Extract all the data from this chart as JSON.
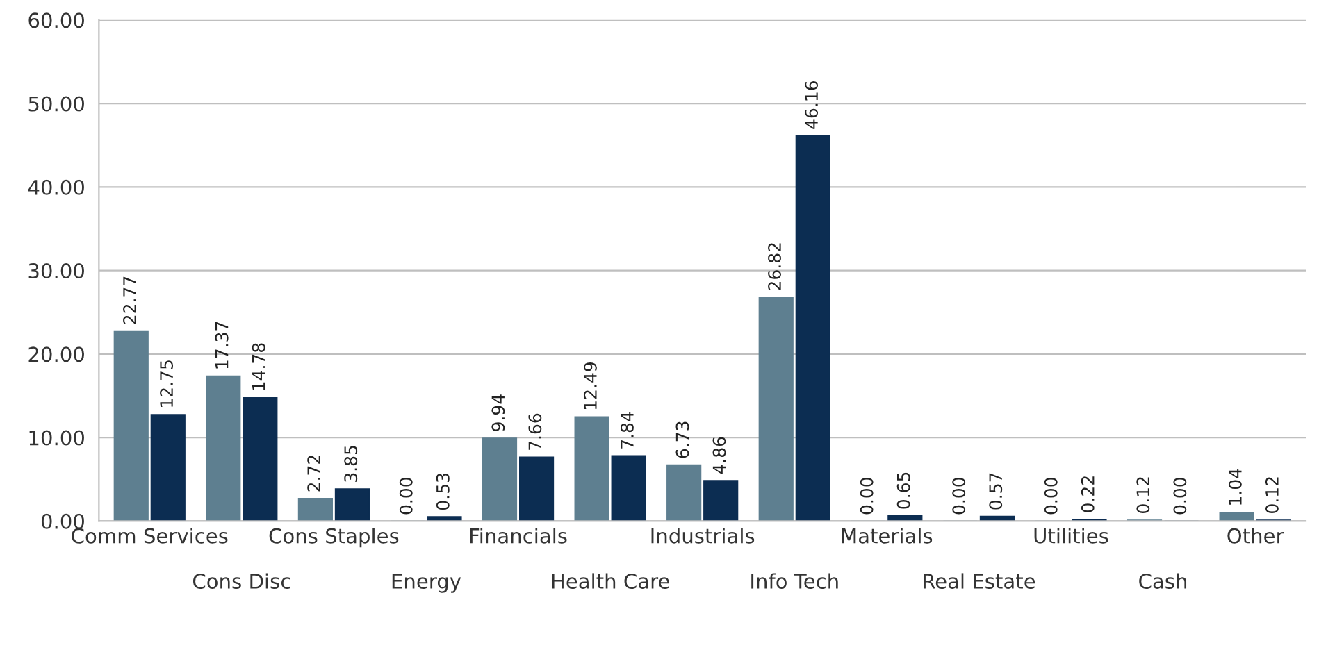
{
  "chart_data": {
    "type": "bar",
    "categories": [
      "Comm Services",
      "Cons Disc",
      "Cons Staples",
      "Energy",
      "Financials",
      "Health Care",
      "Industrials",
      "Info Tech",
      "Materials",
      "Real Estate",
      "Utilities",
      "Cash",
      "Other"
    ],
    "series": [
      {
        "color": "#5e7f90",
        "values": [
          22.77,
          17.37,
          2.72,
          0.0,
          9.94,
          12.49,
          6.73,
          26.82,
          0.0,
          0.0,
          0.0,
          0.12,
          1.04
        ],
        "value_labels": [
          "22.77",
          "17.37",
          "2.72",
          "0.00",
          "9.94",
          "12.49",
          "6.73",
          "26.82",
          "0.00",
          "0.00",
          "0.00",
          "0.12",
          "1.04"
        ]
      },
      {
        "color": "#0c2d52",
        "values": [
          12.75,
          14.78,
          3.85,
          0.53,
          7.66,
          7.84,
          4.86,
          46.16,
          0.65,
          0.57,
          0.22,
          0.0,
          0.12
        ],
        "value_labels": [
          "12.75",
          "14.78",
          "3.85",
          "0.53",
          "7.66",
          "7.84",
          "4.86",
          "46.16",
          "0.65",
          "0.57",
          "0.22",
          "0.00",
          "0.12"
        ]
      }
    ],
    "ylim": [
      0,
      60
    ],
    "yticks": [
      {
        "value": 0,
        "label": "0.00"
      },
      {
        "value": 10,
        "label": "10.00"
      },
      {
        "value": 20,
        "label": "20.00"
      },
      {
        "value": 30,
        "label": "30.00"
      },
      {
        "value": 40,
        "label": "40.00"
      },
      {
        "value": 50,
        "label": "50.00"
      },
      {
        "value": 60,
        "label": "60.00"
      }
    ],
    "grid": "y"
  }
}
